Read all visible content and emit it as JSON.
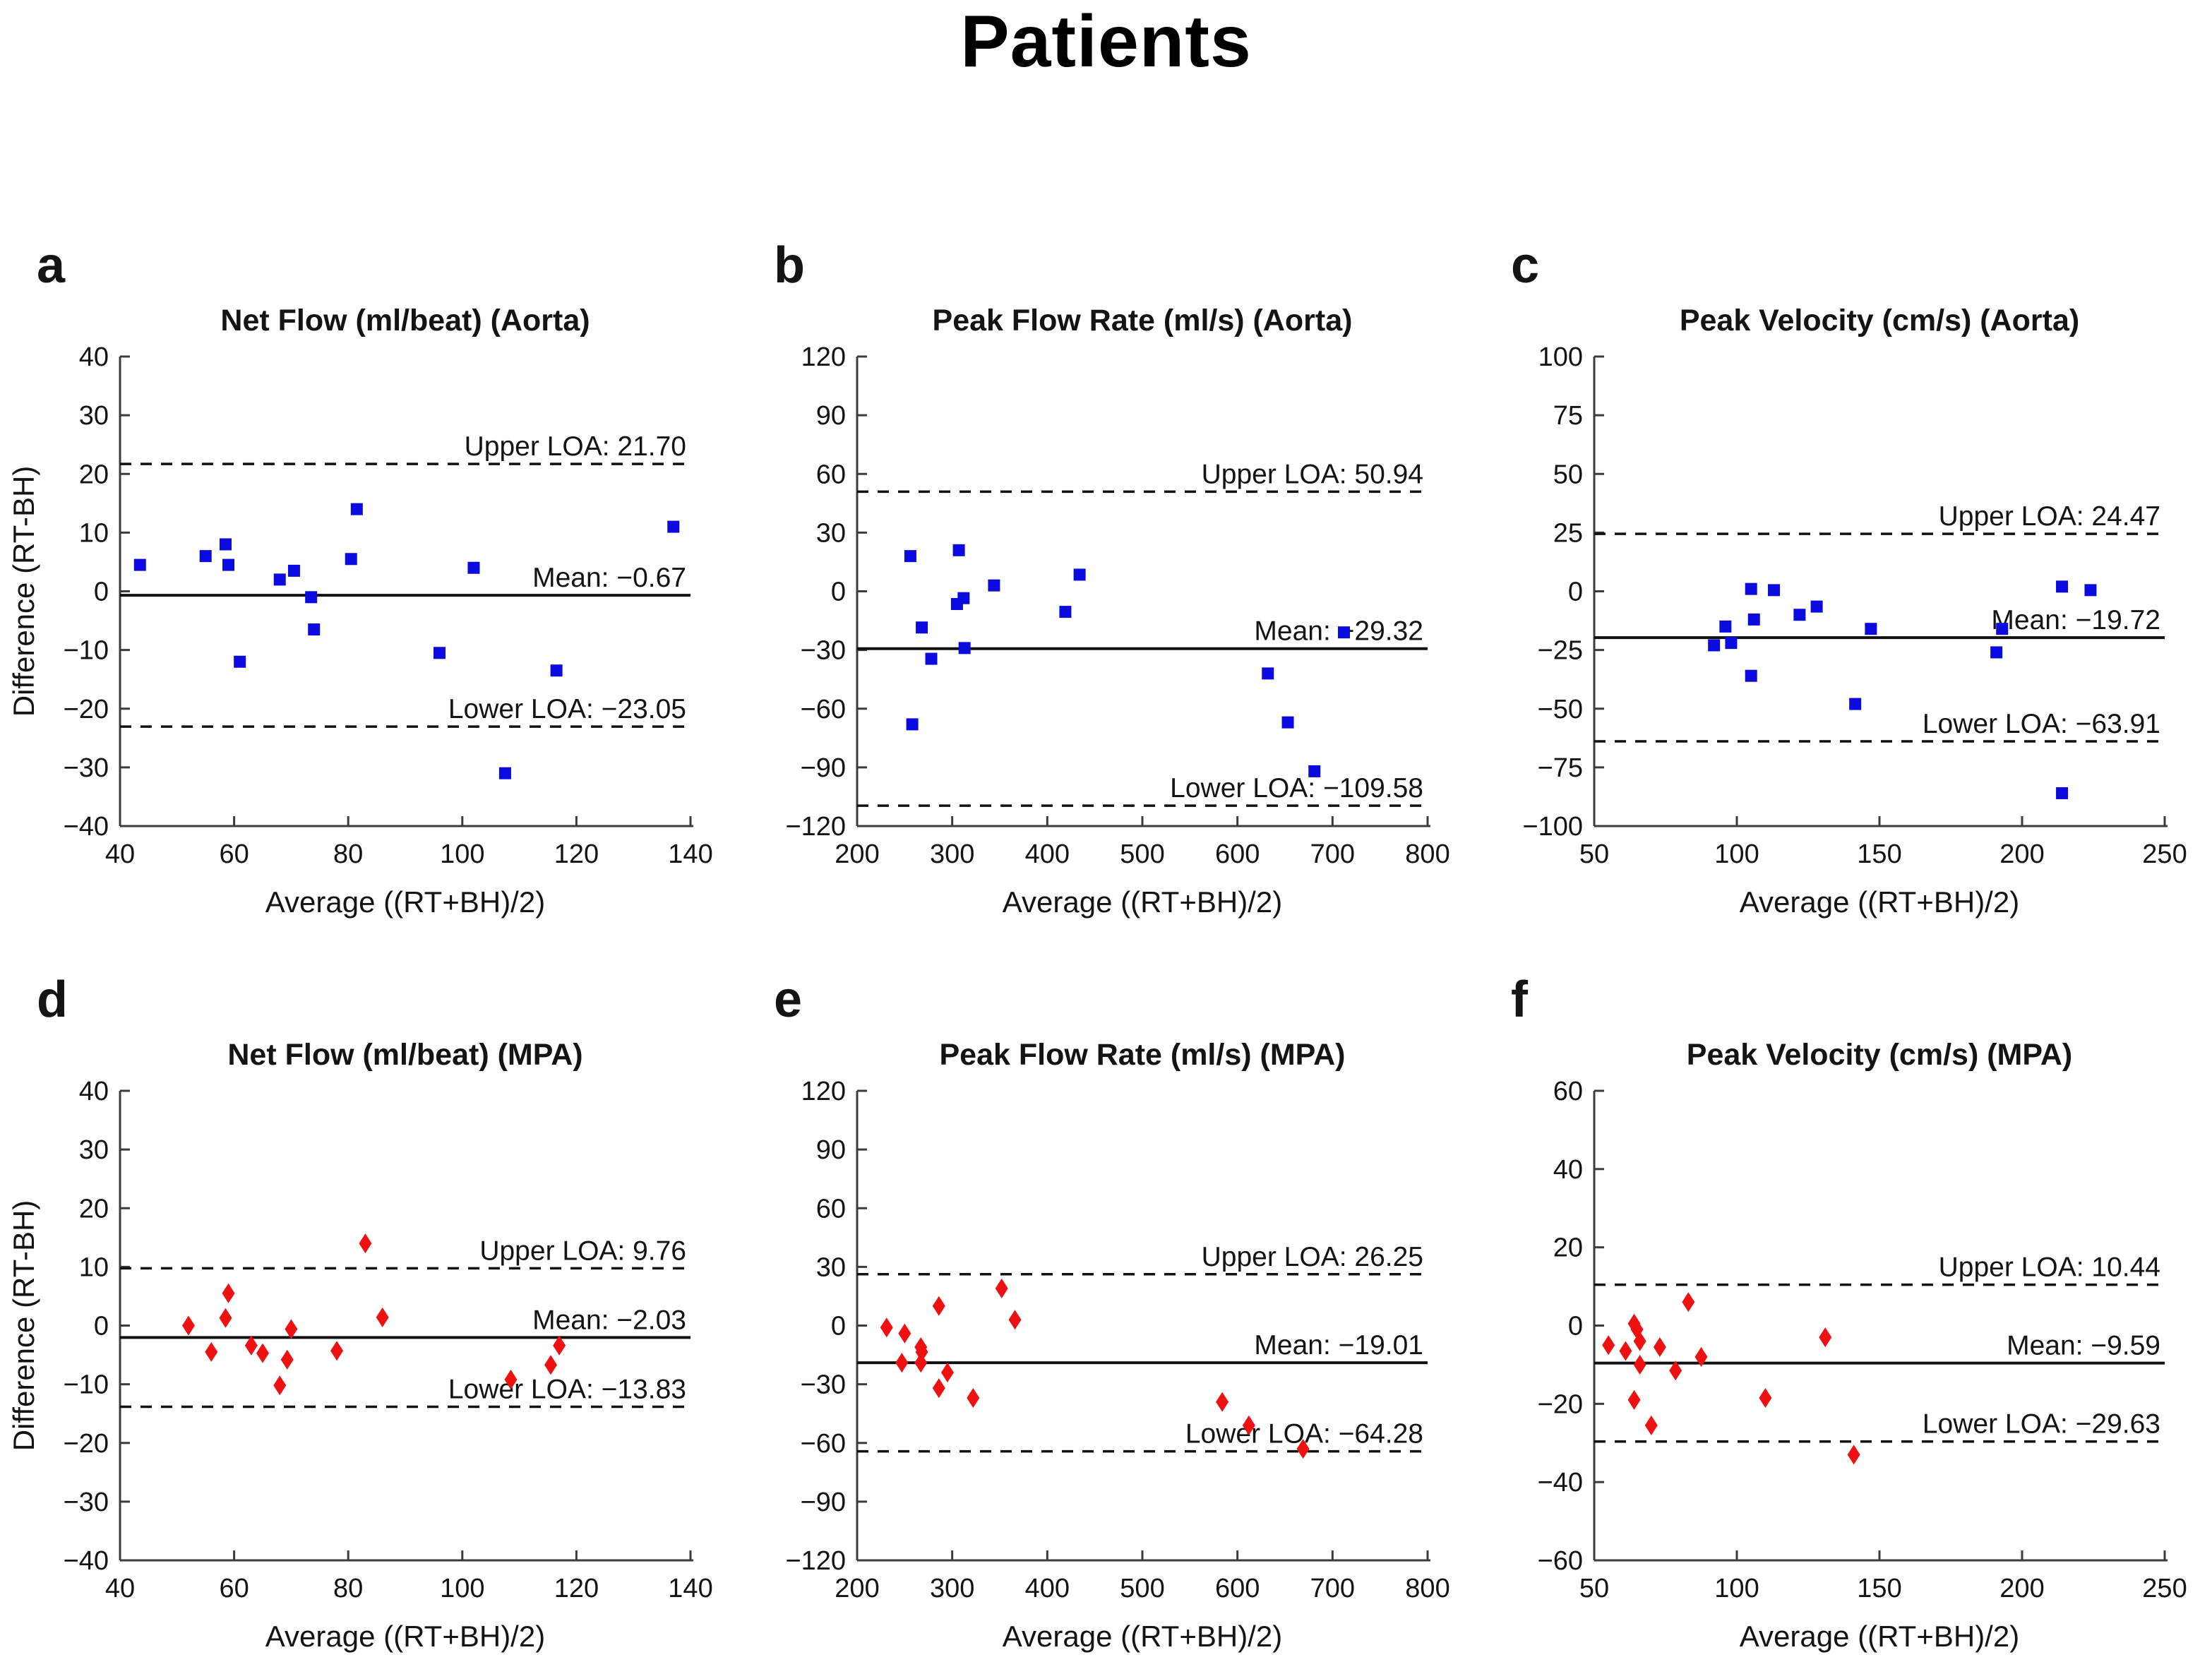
{
  "figure": {
    "title": "Patients",
    "background": "#ffffff",
    "text_color": "#141414",
    "axis_color": "#3c3c3c",
    "line_color": "#111111",
    "blue_marker_color": "#0b0bdf",
    "red_marker_color": "#ee1111"
  },
  "chart_data": [
    {
      "id": "a",
      "panel_label": "a",
      "type": "scatter",
      "title": "Net Flow (ml/beat) (Aorta)",
      "xlabel": "Average ((RT+BH)/2)",
      "ylabel": "Difference (RT-BH)",
      "marker": {
        "shape": "square",
        "color": "#0b0bdf"
      },
      "xlim": [
        40,
        140
      ],
      "xticks": [
        40,
        60,
        80,
        100,
        120,
        140
      ],
      "ylim": [
        -40,
        40
      ],
      "yticks": [
        -40,
        -30,
        -20,
        -10,
        0,
        10,
        20,
        30,
        40
      ],
      "grid": false,
      "legend": null,
      "lines": {
        "upper_loa": {
          "value": 21.7,
          "label": "Upper LOA: 21.70",
          "style": "dashed"
        },
        "mean": {
          "value": -0.67,
          "label": "Mean: −0.67",
          "style": "solid"
        },
        "lower_loa": {
          "value": -23.05,
          "label": "Lower LOA: −23.05",
          "style": "dashed"
        }
      },
      "points": [
        [
          43.5,
          4.5
        ],
        [
          55,
          6
        ],
        [
          58.5,
          8
        ],
        [
          59,
          4.5
        ],
        [
          61,
          -12
        ],
        [
          68,
          2
        ],
        [
          70.5,
          3.5
        ],
        [
          73.5,
          -1
        ],
        [
          74,
          -6.5
        ],
        [
          80.5,
          5.5
        ],
        [
          81.5,
          14
        ],
        [
          96,
          -10.5
        ],
        [
          102,
          4
        ],
        [
          107.5,
          -31
        ],
        [
          116.5,
          -13.5
        ],
        [
          137,
          11
        ]
      ]
    },
    {
      "id": "b",
      "panel_label": "b",
      "type": "scatter",
      "title": "Peak Flow Rate (ml/s) (Aorta)",
      "xlabel": "Average ((RT+BH)/2)",
      "ylabel": null,
      "marker": {
        "shape": "square",
        "color": "#0b0bdf"
      },
      "xlim": [
        200,
        800
      ],
      "xticks": [
        200,
        300,
        400,
        500,
        600,
        700,
        800
      ],
      "ylim": [
        -120,
        120
      ],
      "yticks": [
        -120,
        -90,
        -60,
        -30,
        0,
        30,
        60,
        90,
        120
      ],
      "grid": false,
      "legend": null,
      "lines": {
        "upper_loa": {
          "value": 50.94,
          "label": "Upper LOA: 50.94",
          "style": "dashed"
        },
        "mean": {
          "value": -29.32,
          "label": "Mean: −29.32",
          "style": "solid"
        },
        "lower_loa": {
          "value": -109.58,
          "label": "Lower LOA: −109.58",
          "style": "dashed"
        }
      },
      "points": [
        [
          256,
          18
        ],
        [
          258,
          -68
        ],
        [
          268,
          -18.5
        ],
        [
          278,
          -34.5
        ],
        [
          305,
          -6.5
        ],
        [
          307,
          21
        ],
        [
          312,
          -3.5
        ],
        [
          313,
          -29
        ],
        [
          344,
          3
        ],
        [
          419,
          -10.5
        ],
        [
          434,
          8.5
        ],
        [
          632,
          -42
        ],
        [
          653,
          -67
        ],
        [
          681,
          -92
        ],
        [
          712,
          -21
        ]
      ]
    },
    {
      "id": "c",
      "panel_label": "c",
      "type": "scatter",
      "title": "Peak Velocity (cm/s) (Aorta)",
      "xlabel": "Average ((RT+BH)/2)",
      "ylabel": null,
      "marker": {
        "shape": "square",
        "color": "#0b0bdf"
      },
      "xlim": [
        50,
        250
      ],
      "xticks": [
        50,
        100,
        150,
        200,
        250
      ],
      "ylim": [
        -100,
        100
      ],
      "yticks": [
        -100,
        -75,
        -50,
        -25,
        0,
        25,
        50,
        75,
        100
      ],
      "grid": false,
      "legend": null,
      "lines": {
        "upper_loa": {
          "value": 24.47,
          "label": "Upper LOA: 24.47",
          "style": "dashed"
        },
        "mean": {
          "value": -19.72,
          "label": "Mean: −19.72",
          "style": "solid"
        },
        "lower_loa": {
          "value": -63.91,
          "label": "Lower LOA: −63.91",
          "style": "dashed"
        }
      },
      "points": [
        [
          92,
          -23
        ],
        [
          96,
          -15
        ],
        [
          98,
          -22
        ],
        [
          105,
          1
        ],
        [
          105,
          -36
        ],
        [
          106,
          -12
        ],
        [
          113,
          0.5
        ],
        [
          122,
          -10
        ],
        [
          128,
          -6.5
        ],
        [
          141.5,
          -48
        ],
        [
          147,
          -16
        ],
        [
          191,
          -26
        ],
        [
          193,
          -16
        ],
        [
          214,
          2
        ],
        [
          214,
          -86
        ],
        [
          224,
          0.5
        ]
      ]
    },
    {
      "id": "d",
      "panel_label": "d",
      "type": "scatter",
      "title": "Net Flow (ml/beat) (MPA)",
      "xlabel": "Average ((RT+BH)/2)",
      "ylabel": "Difference (RT-BH)",
      "marker": {
        "shape": "diamond",
        "color": "#ee1111"
      },
      "xlim": [
        40,
        140
      ],
      "xticks": [
        40,
        60,
        80,
        100,
        120,
        140
      ],
      "ylim": [
        -40,
        40
      ],
      "yticks": [
        -40,
        -30,
        -20,
        -10,
        0,
        10,
        20,
        30,
        40
      ],
      "grid": false,
      "legend": null,
      "lines": {
        "upper_loa": {
          "value": 9.76,
          "label": "Upper LOA: 9.76",
          "style": "dashed"
        },
        "mean": {
          "value": -2.03,
          "label": "Mean: −2.03",
          "style": "solid"
        },
        "lower_loa": {
          "value": -13.83,
          "label": "Lower LOA: −13.83",
          "style": "dashed"
        }
      },
      "points": [
        [
          52,
          0
        ],
        [
          56,
          -4.5
        ],
        [
          58.5,
          1.3
        ],
        [
          59,
          5.5
        ],
        [
          63,
          -3.4
        ],
        [
          65,
          -4.7
        ],
        [
          68,
          -10.2
        ],
        [
          69.3,
          -5.8
        ],
        [
          70,
          -0.6
        ],
        [
          78,
          -4.3
        ],
        [
          83,
          14
        ],
        [
          86,
          1.4
        ],
        [
          108.5,
          -9.2
        ],
        [
          115.5,
          -6.7
        ],
        [
          117,
          -3.4
        ]
      ]
    },
    {
      "id": "e",
      "panel_label": "e",
      "type": "scatter",
      "title": "Peak Flow Rate (ml/s) (MPA)",
      "xlabel": "Average ((RT+BH)/2)",
      "ylabel": null,
      "marker": {
        "shape": "diamond",
        "color": "#ee1111"
      },
      "xlim": [
        200,
        800
      ],
      "xticks": [
        200,
        300,
        400,
        500,
        600,
        700,
        800
      ],
      "ylim": [
        -120,
        120
      ],
      "yticks": [
        -120,
        -90,
        -60,
        -30,
        0,
        30,
        60,
        90,
        120
      ],
      "grid": false,
      "legend": null,
      "lines": {
        "upper_loa": {
          "value": 26.25,
          "label": "Upper LOA: 26.25",
          "style": "dashed"
        },
        "mean": {
          "value": -19.01,
          "label": "Mean: −19.01",
          "style": "solid"
        },
        "lower_loa": {
          "value": -64.28,
          "label": "Lower LOA: −64.28",
          "style": "dashed"
        }
      },
      "points": [
        [
          231,
          -1
        ],
        [
          247,
          -19
        ],
        [
          250,
          -4
        ],
        [
          267,
          -11
        ],
        [
          267,
          -19
        ],
        [
          268,
          -13.5
        ],
        [
          286,
          10
        ],
        [
          286,
          -32
        ],
        [
          295,
          -24
        ],
        [
          322,
          -37
        ],
        [
          352,
          19
        ],
        [
          366,
          3
        ],
        [
          584,
          -39
        ],
        [
          612,
          -51
        ],
        [
          669,
          -63
        ]
      ]
    },
    {
      "id": "f",
      "panel_label": "f",
      "type": "scatter",
      "title": "Peak Velocity (cm/s) (MPA)",
      "xlabel": "Average ((RT+BH)/2)",
      "ylabel": null,
      "marker": {
        "shape": "diamond",
        "color": "#ee1111"
      },
      "xlim": [
        50,
        250
      ],
      "xticks": [
        50,
        100,
        150,
        200,
        250
      ],
      "ylim": [
        -60,
        60
      ],
      "yticks": [
        -60,
        -40,
        -20,
        0,
        20,
        40,
        60
      ],
      "grid": false,
      "legend": null,
      "lines": {
        "upper_loa": {
          "value": 10.44,
          "label": "Upper LOA: 10.44",
          "style": "dashed"
        },
        "mean": {
          "value": -9.59,
          "label": "Mean: −9.59",
          "style": "solid"
        },
        "lower_loa": {
          "value": -29.63,
          "label": "Lower LOA: −29.63",
          "style": "dashed"
        }
      },
      "points": [
        [
          55,
          -5
        ],
        [
          61,
          -6.5
        ],
        [
          64,
          0.5
        ],
        [
          64,
          -19
        ],
        [
          65,
          -1
        ],
        [
          66,
          -4
        ],
        [
          66,
          -10
        ],
        [
          70,
          -25.5
        ],
        [
          73,
          -5.5
        ],
        [
          78.5,
          -11.5
        ],
        [
          83,
          6
        ],
        [
          87.5,
          -8
        ],
        [
          110,
          -18.5
        ],
        [
          131,
          -3
        ],
        [
          141,
          -33
        ]
      ]
    }
  ]
}
